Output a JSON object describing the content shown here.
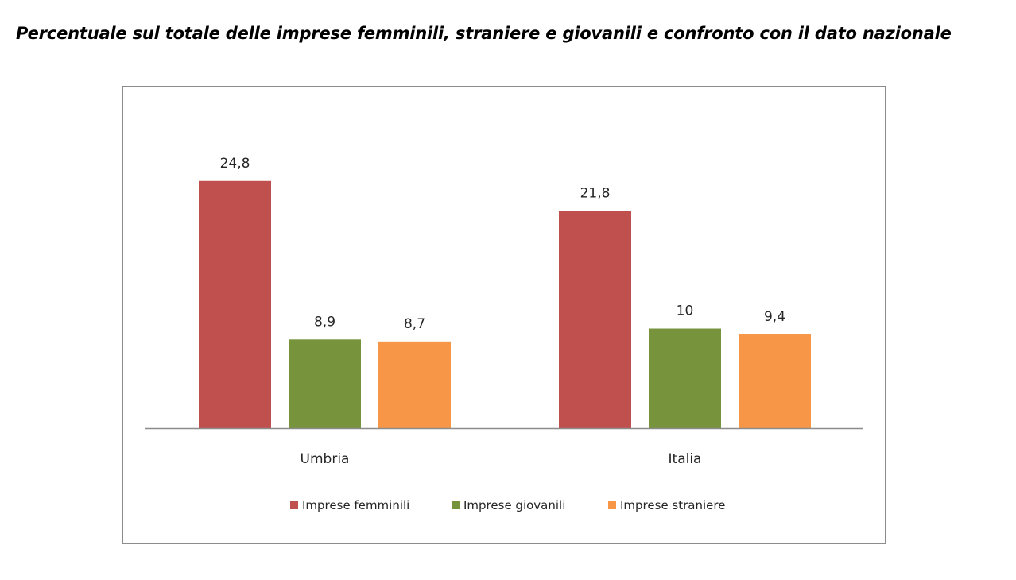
{
  "title": "Percentuale sul totale delle imprese femminili, straniere e giovanili e confronto con il dato nazionale",
  "chart_data": {
    "type": "bar",
    "categories": [
      "Umbria",
      "Italia"
    ],
    "series": [
      {
        "name": "Imprese femminili",
        "values": [
          24.8,
          21.8
        ],
        "labels": [
          "24,8",
          "21,8"
        ],
        "color": "#c0504d"
      },
      {
        "name": "Imprese giovanili",
        "values": [
          8.9,
          10
        ],
        "labels": [
          "8,9",
          "10"
        ],
        "color": "#77933c"
      },
      {
        "name": "Imprese straniere",
        "values": [
          8.7,
          9.4
        ],
        "labels": [
          "8,7",
          "9,4"
        ],
        "color": "#f79646"
      }
    ],
    "ylim": [
      0,
      30
    ],
    "grid": false,
    "legend_position": "bottom",
    "xlabel": "",
    "ylabel": ""
  }
}
